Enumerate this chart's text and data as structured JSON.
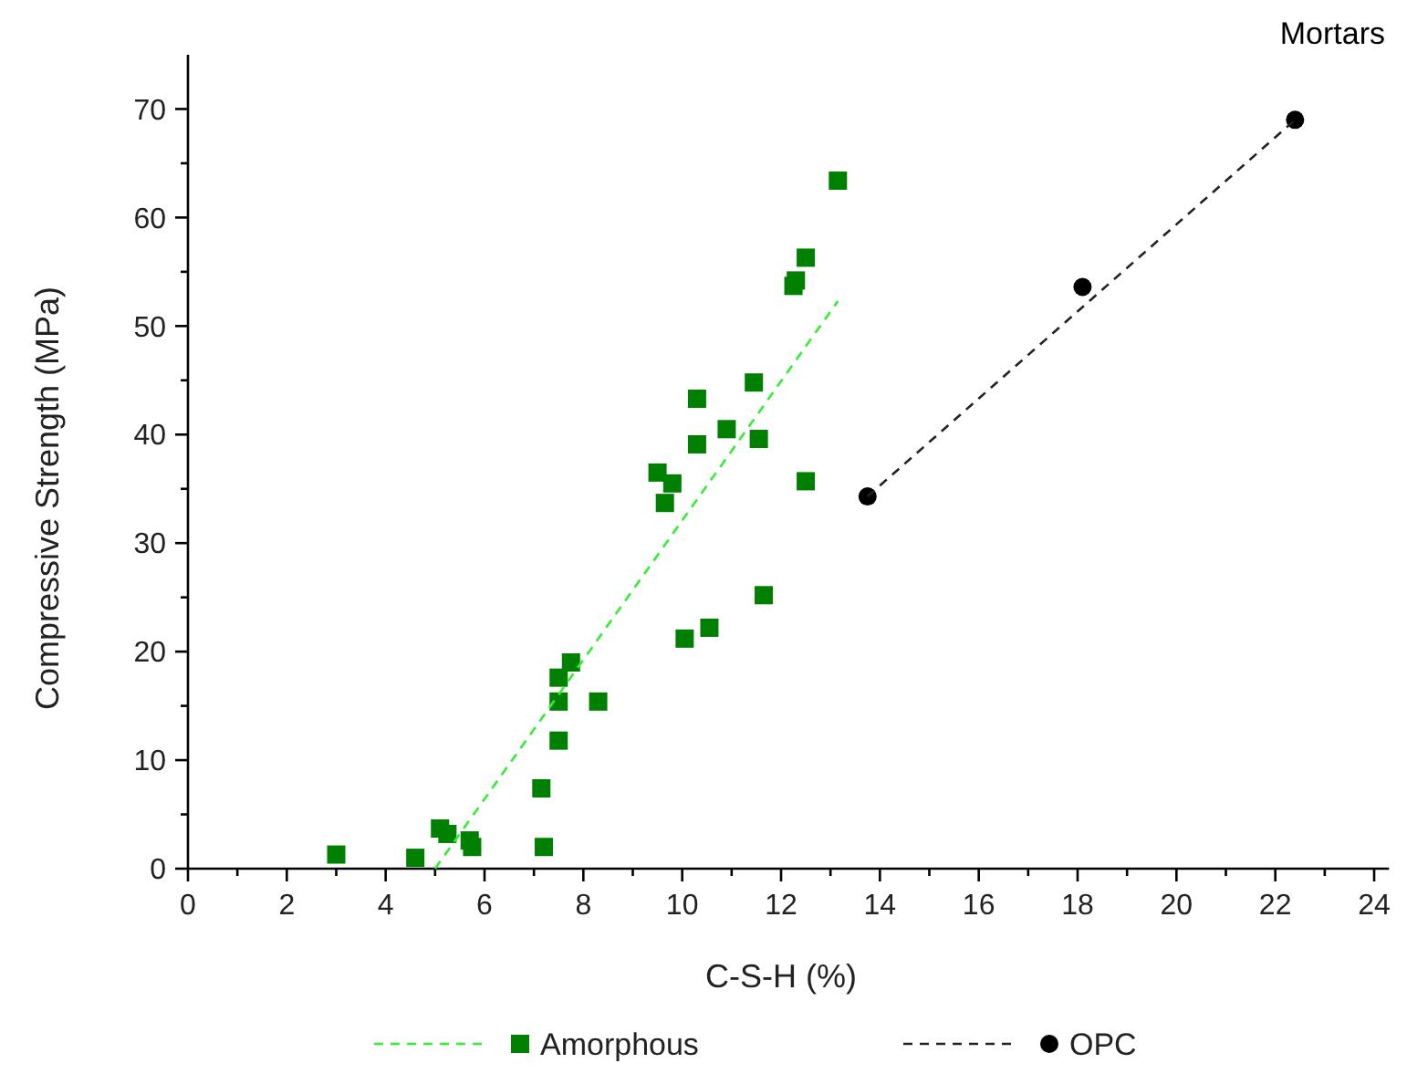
{
  "chart_data": {
    "type": "scatter",
    "title": "Mortars",
    "xlabel": "C-S-H (%)",
    "ylabel": "Compressive Strength (MPa)",
    "xlim": [
      0,
      24.3
    ],
    "ylim": [
      0,
      75
    ],
    "xticks": [
      0,
      {
        "value": 1,
        "label": null
      },
      2,
      {
        "value": 3,
        "label": null
      },
      4,
      {
        "value": 5,
        "label": null
      },
      6,
      {
        "value": 7,
        "label": null
      },
      8,
      {
        "value": 9,
        "label": null
      },
      10,
      {
        "value": 11,
        "label": null
      },
      12,
      {
        "value": 13,
        "label": null
      },
      14,
      {
        "value": 15,
        "label": null
      },
      16,
      {
        "value": 17,
        "label": null
      },
      18,
      {
        "value": 19,
        "label": null
      },
      20,
      {
        "value": 21,
        "label": null
      },
      22,
      {
        "value": 23,
        "label": null
      },
      24
    ],
    "yticks": [
      0,
      {
        "value": 5,
        "label": null
      },
      10,
      {
        "value": 15,
        "label": null
      },
      20,
      {
        "value": 25,
        "label": null
      },
      30,
      {
        "value": 35,
        "label": null
      },
      40,
      {
        "value": 45,
        "label": null
      },
      50,
      {
        "value": 55,
        "label": null
      },
      60,
      {
        "value": 65,
        "label": null
      },
      70
    ],
    "grid": false,
    "legend": "bottom",
    "series": [
      {
        "name": "Amorphous",
        "marker": "square",
        "color": "#008000",
        "x": [
          3.0,
          4.6,
          5.1,
          5.25,
          5.7,
          5.75,
          7.15,
          7.2,
          7.5,
          7.5,
          7.5,
          7.75,
          8.3,
          9.5,
          9.65,
          9.8,
          10.05,
          10.3,
          10.3,
          10.55,
          10.9,
          11.45,
          11.55,
          11.65,
          12.25,
          12.3,
          12.5,
          12.5,
          13.15
        ],
        "values": [
          1.3,
          1.0,
          3.7,
          3.2,
          2.6,
          2.0,
          7.4,
          2.0,
          11.8,
          15.4,
          17.6,
          19.0,
          15.4,
          36.5,
          33.7,
          35.5,
          21.2,
          39.1,
          43.3,
          22.2,
          40.5,
          44.8,
          39.6,
          25.2,
          53.7,
          54.2,
          35.7,
          56.3,
          63.4
        ]
      },
      {
        "type": "line",
        "marker": "none",
        "line_style": "dashed",
        "color": "#33ee33",
        "x": [
          5.0,
          13.15
        ],
        "values": [
          0,
          52.3
        ]
      },
      {
        "name": "OPC",
        "marker": "circle",
        "color": "#000000",
        "x": [
          13.75,
          18.1,
          22.4
        ],
        "values": [
          34.3,
          53.6,
          69.0
        ]
      },
      {
        "type": "line",
        "marker": "none",
        "line_style": "dashed",
        "color": "#222222",
        "x": [
          13.75,
          22.4
        ],
        "values": [
          34.3,
          69.0
        ]
      }
    ]
  }
}
